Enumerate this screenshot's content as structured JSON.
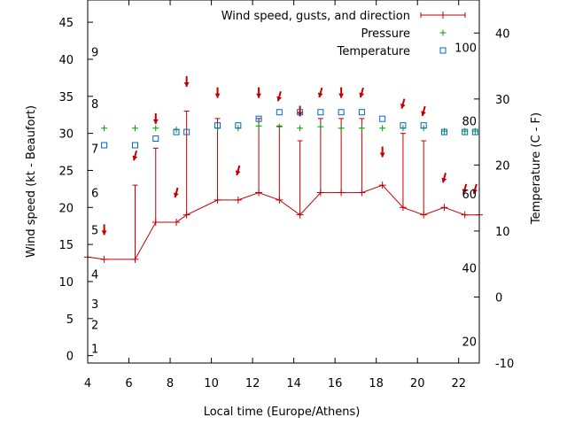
{
  "chart_data": {
    "type": "line",
    "xlabel": "Local time (Europe/Athens)",
    "ylabel": "Wind speed (kt - Beaufort)",
    "y2label": "Temperature (C - F)",
    "xlim": [
      4,
      23
    ],
    "ylim": [
      -1,
      48
    ],
    "y2lim": [
      -10,
      45
    ],
    "xticks": [
      4,
      6,
      8,
      10,
      12,
      14,
      16,
      18,
      20,
      22
    ],
    "yticks": [
      0,
      5,
      10,
      15,
      20,
      25,
      30,
      35,
      40,
      45
    ],
    "y2ticks": [
      -10,
      0,
      10,
      20,
      30,
      40
    ],
    "beaufort_labels": [
      {
        "label": "1",
        "y": 1
      },
      {
        "label": "2",
        "y": 4.2
      },
      {
        "label": "3",
        "y": 7
      },
      {
        "label": "4",
        "y": 11
      },
      {
        "label": "5",
        "y": 17
      },
      {
        "label": "6",
        "y": 22
      },
      {
        "label": "7",
        "y": 28
      },
      {
        "label": "8",
        "y": 34
      },
      {
        "label": "9",
        "y": 41
      }
    ],
    "fahrenheit_labels": [
      {
        "label": "20",
        "y2": -6.7
      },
      {
        "label": "40",
        "y2": 4.4
      },
      {
        "label": "60",
        "y2": 15.6
      },
      {
        "label": "80",
        "y2": 26.7
      },
      {
        "label": "100",
        "y2": 37.8
      }
    ],
    "legend": [
      {
        "name": "Wind speed, gusts, and direction",
        "color": "#c00000",
        "style": "line"
      },
      {
        "name": "Pressure",
        "color": "#00a000",
        "style": "plus"
      },
      {
        "name": "Temperature",
        "color": "#0066cc",
        "style": "square"
      }
    ],
    "wind": {
      "x": [
        4,
        4.8,
        6.3,
        7.3,
        8.3,
        8.8,
        10.3,
        11.3,
        12.3,
        13.3,
        14.3,
        15.3,
        16.3,
        17.3,
        18.3,
        19.3,
        20.3,
        21.3,
        22.3,
        23
      ],
      "speed": [
        13.3,
        13,
        13,
        18,
        18,
        19,
        21,
        21,
        22,
        21,
        19,
        22,
        22,
        22,
        23,
        20,
        19,
        20,
        19,
        19
      ],
      "gust": [
        null,
        null,
        23,
        28,
        null,
        33,
        32,
        null,
        32,
        31,
        29,
        32,
        32,
        32,
        null,
        30,
        29,
        null,
        null,
        null
      ]
    },
    "direction_arrows": [
      {
        "x": 4.8,
        "y": 17,
        "dir": "s"
      },
      {
        "x": 6.3,
        "y": 27,
        "dir": "sw"
      },
      {
        "x": 7.3,
        "y": 32,
        "dir": "s"
      },
      {
        "x": 8.3,
        "y": 22,
        "dir": "sw"
      },
      {
        "x": 8.8,
        "y": 37,
        "dir": "s"
      },
      {
        "x": 10.3,
        "y": 35.5,
        "dir": "s"
      },
      {
        "x": 11.3,
        "y": 25,
        "dir": "sw"
      },
      {
        "x": 12.3,
        "y": 35.5,
        "dir": "s"
      },
      {
        "x": 13.3,
        "y": 35,
        "dir": "sw"
      },
      {
        "x": 14.3,
        "y": 33,
        "dir": "s"
      },
      {
        "x": 15.3,
        "y": 35.5,
        "dir": "sw"
      },
      {
        "x": 16.3,
        "y": 35.5,
        "dir": "s"
      },
      {
        "x": 17.3,
        "y": 35.5,
        "dir": "sw"
      },
      {
        "x": 18.3,
        "y": 27.5,
        "dir": "s"
      },
      {
        "x": 19.3,
        "y": 34,
        "dir": "sw"
      },
      {
        "x": 20.3,
        "y": 33,
        "dir": "sw"
      },
      {
        "x": 21.3,
        "y": 24,
        "dir": "sw"
      },
      {
        "x": 22.3,
        "y": 22.5,
        "dir": "sw"
      },
      {
        "x": 22.8,
        "y": 22.5,
        "dir": "sw"
      }
    ],
    "pressure": {
      "x": [
        4.8,
        6.3,
        7.3,
        8.3,
        10.3,
        11.3,
        12.3,
        13.3,
        14.3,
        15.3,
        16.3,
        17.3,
        18.3,
        19.3,
        20.3,
        21.3,
        22.3,
        22.8
      ],
      "y": [
        30.7,
        30.7,
        30.7,
        30.5,
        30.7,
        30.7,
        31,
        30.9,
        30.7,
        30.9,
        30.7,
        30.7,
        30.7,
        30.7,
        30.7,
        30.3,
        30.3,
        30.3
      ]
    },
    "temperature": {
      "x": [
        4.8,
        6.3,
        7.3,
        8.3,
        8.8,
        10.3,
        11.3,
        12.3,
        13.3,
        14.3,
        15.3,
        16.3,
        17.3,
        18.3,
        19.3,
        20.3,
        21.3,
        22.3,
        22.8
      ],
      "y": [
        23,
        23,
        24,
        25,
        25,
        26,
        26,
        27,
        28,
        28,
        28,
        28,
        28,
        27,
        26,
        26,
        25,
        25,
        25
      ]
    }
  }
}
